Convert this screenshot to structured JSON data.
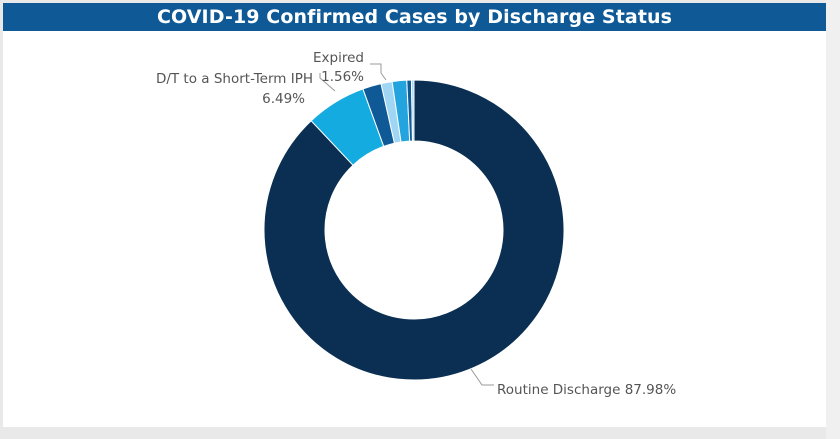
{
  "title": "COVID-19 Confirmed Cases by Discharge Status",
  "colors": {
    "title_bar": "#0f5a96",
    "background": "#e9e9e9",
    "panel": "#ffffff"
  },
  "chart_data": {
    "type": "pie",
    "donut": true,
    "title": "COVID-19 Confirmed Cases by Discharge Status",
    "slices": [
      {
        "name": "Routine Discharge",
        "value": 87.98,
        "label": "Routine Discharge 87.98%",
        "color": "#0a2f52"
      },
      {
        "name": "D/T to a Short-Term IPH",
        "value": 6.49,
        "label_line1": "D/T to a Short-Term IPH",
        "label_line2": "6.49%",
        "color": "#13abe0"
      },
      {
        "name": "",
        "value": 2.0,
        "color": "#0f5a96"
      },
      {
        "name": "",
        "value": 1.2,
        "color": "#9fd6f3"
      },
      {
        "name": "Expired",
        "value": 1.56,
        "label_line1": "Expired",
        "label_line2": "1.56%",
        "color": "#24a4df"
      },
      {
        "name": "",
        "value": 0.5,
        "color": "#0f5a96"
      },
      {
        "name": "",
        "value": 0.27,
        "color": "#a5d7ef"
      }
    ]
  }
}
